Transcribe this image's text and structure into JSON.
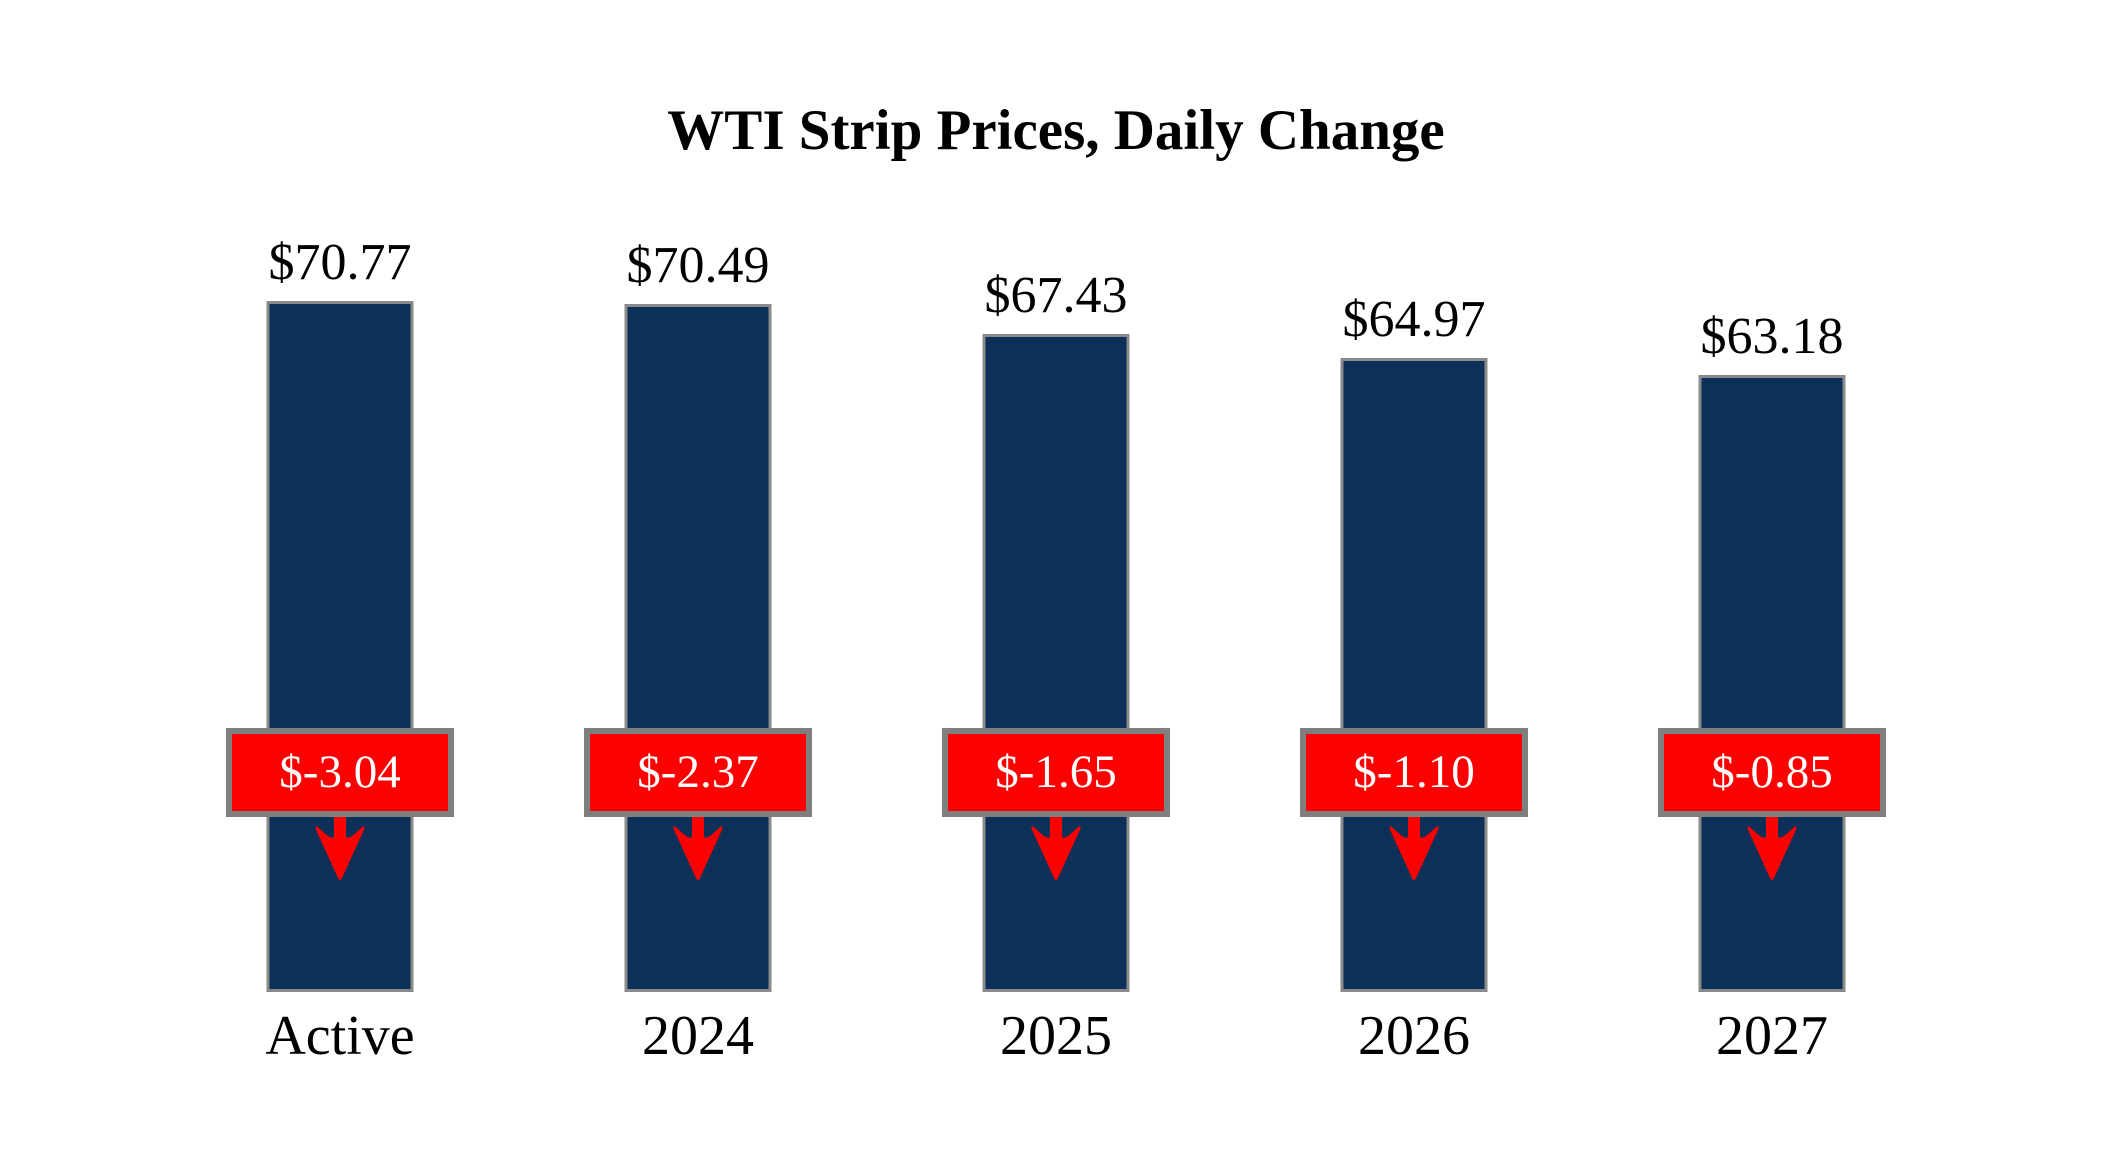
{
  "title": "WTI Strip Prices, Daily Change",
  "colors": {
    "background": "#FFFFFF",
    "bar_fill": "#0D3059",
    "bar_border": "#8A8A8A",
    "badge_fill": "#FB0101",
    "badge_border": "#7F7F7F",
    "badge_text": "#FFFFFF",
    "arrow": "#FB0101",
    "label_text": "#000000"
  },
  "chart_data": {
    "type": "bar",
    "title": "WTI Strip Prices, Daily Change",
    "categories": [
      "Active",
      "2024",
      "2025",
      "2026",
      "2027"
    ],
    "series": [
      {
        "name": "WTI Strip Price",
        "values": [
          70.77,
          70.49,
          67.43,
          64.97,
          63.18
        ],
        "labels": [
          "$70.77",
          "$70.49",
          "$67.43",
          "$64.97",
          "$63.18"
        ]
      },
      {
        "name": "Daily Change",
        "values": [
          -3.04,
          -2.37,
          -1.65,
          -1.1,
          -0.85
        ],
        "labels": [
          "$-3.04",
          "$-2.37",
          "$-1.65",
          "$-1.10",
          "$-0.85"
        ]
      }
    ],
    "ylim": [
      0,
      75
    ],
    "xlabel": "",
    "ylabel": "",
    "grid": false,
    "legend_position": "none",
    "bar_color": "#0D3059",
    "change_badge_color": "#FB0101"
  }
}
